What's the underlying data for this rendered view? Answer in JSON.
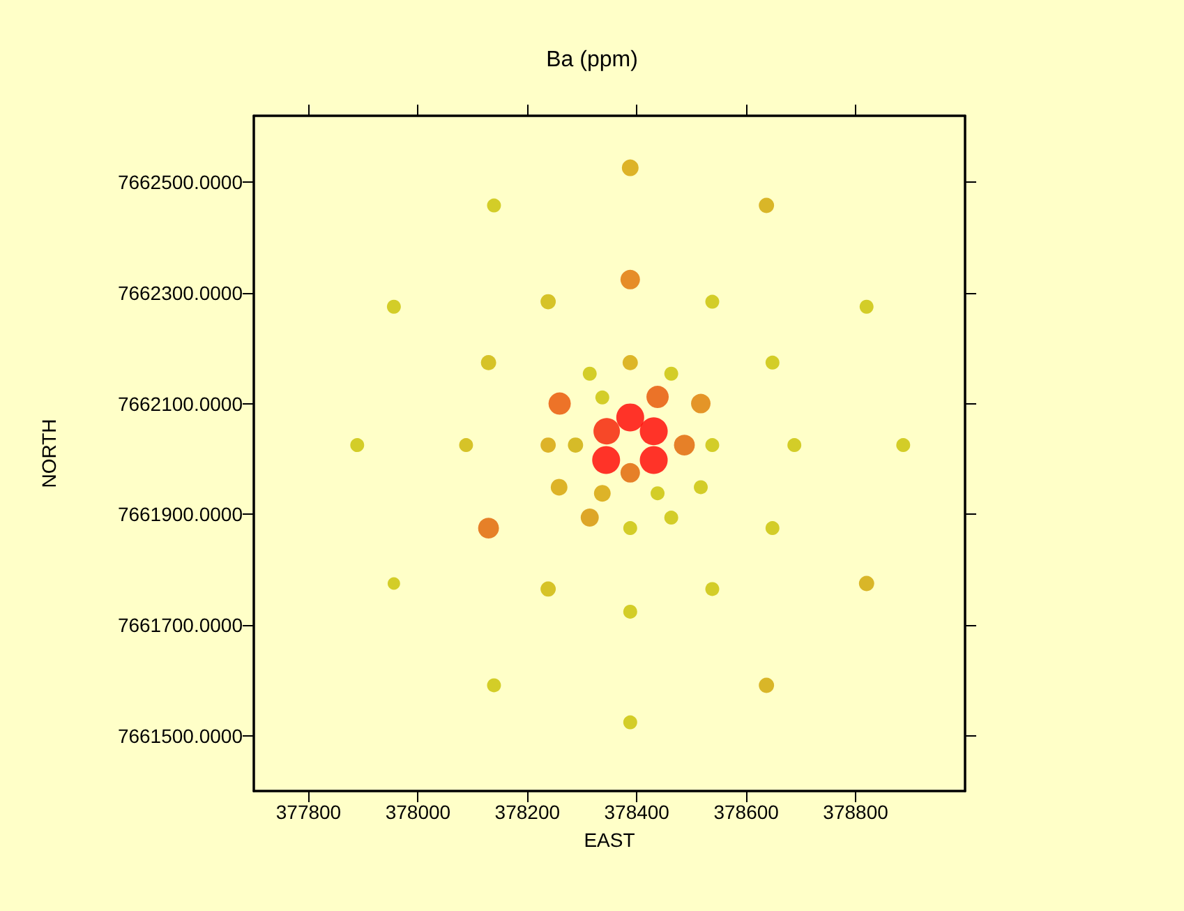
{
  "chart_data": {
    "type": "bubble",
    "title": "Ba (ppm)",
    "xlabel": "EAST",
    "ylabel": "NORTH",
    "marker": "circle",
    "xlim": [
      377700,
      379000
    ],
    "xticks": [
      377800,
      378000,
      378200,
      378400,
      378600,
      378800
    ],
    "ylim": [
      7661400,
      7662620
    ],
    "yticks": [
      {
        "value": 7661500,
        "label": "7661500.0000"
      },
      {
        "value": 7661700,
        "label": "7661700.0000"
      },
      {
        "value": 7661900,
        "label": "7661900.0000"
      },
      {
        "value": 7662100,
        "label": "7662100.0000"
      },
      {
        "value": 7662300,
        "label": "7662300.0000"
      },
      {
        "value": 7662500,
        "label": "7662500.0000"
      }
    ],
    "x": [
      378388,
      378139,
      378637,
      378388,
      377956,
      378238,
      378538,
      378820,
      378129,
      378388,
      378648,
      378314,
      378463,
      378259,
      378337,
      378438,
      378517,
      378388,
      378345,
      378431,
      377889,
      378088,
      378238,
      378288,
      378487,
      378538,
      378688,
      378887,
      378344,
      378431,
      378388,
      378258,
      378337,
      378438,
      378517,
      378314,
      378463,
      378129,
      378388,
      378648,
      377956,
      378238,
      378538,
      378820,
      378388,
      378139,
      378637,
      378388
    ],
    "values": [
      7662526,
      7662458,
      7662458,
      7662324,
      7662275,
      7662284,
      7662284,
      7662275,
      7662174,
      7662174,
      7662174,
      7662154,
      7662154,
      7662100,
      7662111,
      7662112,
      7662100,
      7662075,
      7662050,
      7662050,
      7662025,
      7662025,
      7662025,
      7662025,
      7662025,
      7662025,
      7662025,
      7662025,
      7661998,
      7661998,
      7661975,
      7661949,
      7661938,
      7661938,
      7661949,
      7661894,
      7661894,
      7661875,
      7661875,
      7661875,
      7661775,
      7661765,
      7661765,
      7661775,
      7661724,
      7661591,
      7661591,
      7661524
    ],
    "sizes": [
      0.36,
      0.25,
      0.3,
      0.49,
      0.25,
      0.3,
      0.25,
      0.25,
      0.3,
      0.3,
      0.25,
      0.25,
      0.25,
      0.64,
      0.25,
      0.64,
      0.49,
      1,
      0.9,
      1,
      0.25,
      0.25,
      0.3,
      0.3,
      0.56,
      0.25,
      0.25,
      0.25,
      1,
      1,
      0.49,
      0.36,
      0.36,
      0.25,
      0.25,
      0.42,
      0.25,
      0.56,
      0.25,
      0.25,
      0.2,
      0.3,
      0.25,
      0.3,
      0.25,
      0.25,
      0.3,
      0.25
    ],
    "colors": [
      "#d4a000",
      "#c8c000",
      "#d0a400",
      "#e07000",
      "#c8c000",
      "#ccb400",
      "#c8c000",
      "#c8c000",
      "#ccb400",
      "#d4a400",
      "#c8c000",
      "#c8c000",
      "#c8c000",
      "#e85000",
      "#c8c000",
      "#e65000",
      "#dd7a00",
      "#ff0000",
      "#f51a00",
      "#ff0000",
      "#c8c000",
      "#ccb400",
      "#d4a000",
      "#ccaa00",
      "#e06000",
      "#c8c000",
      "#c8c000",
      "#c8c000",
      "#ff0000",
      "#ff0000",
      "#e06000",
      "#d4a000",
      "#d4a000",
      "#c8c000",
      "#c8c000",
      "#d49000",
      "#c8c000",
      "#e06000",
      "#c8c000",
      "#c8c000",
      "#c8c000",
      "#ccb400",
      "#c8c000",
      "#d0a400",
      "#c8c000",
      "#c8c000",
      "#d0a400",
      "#c8c000"
    ]
  }
}
